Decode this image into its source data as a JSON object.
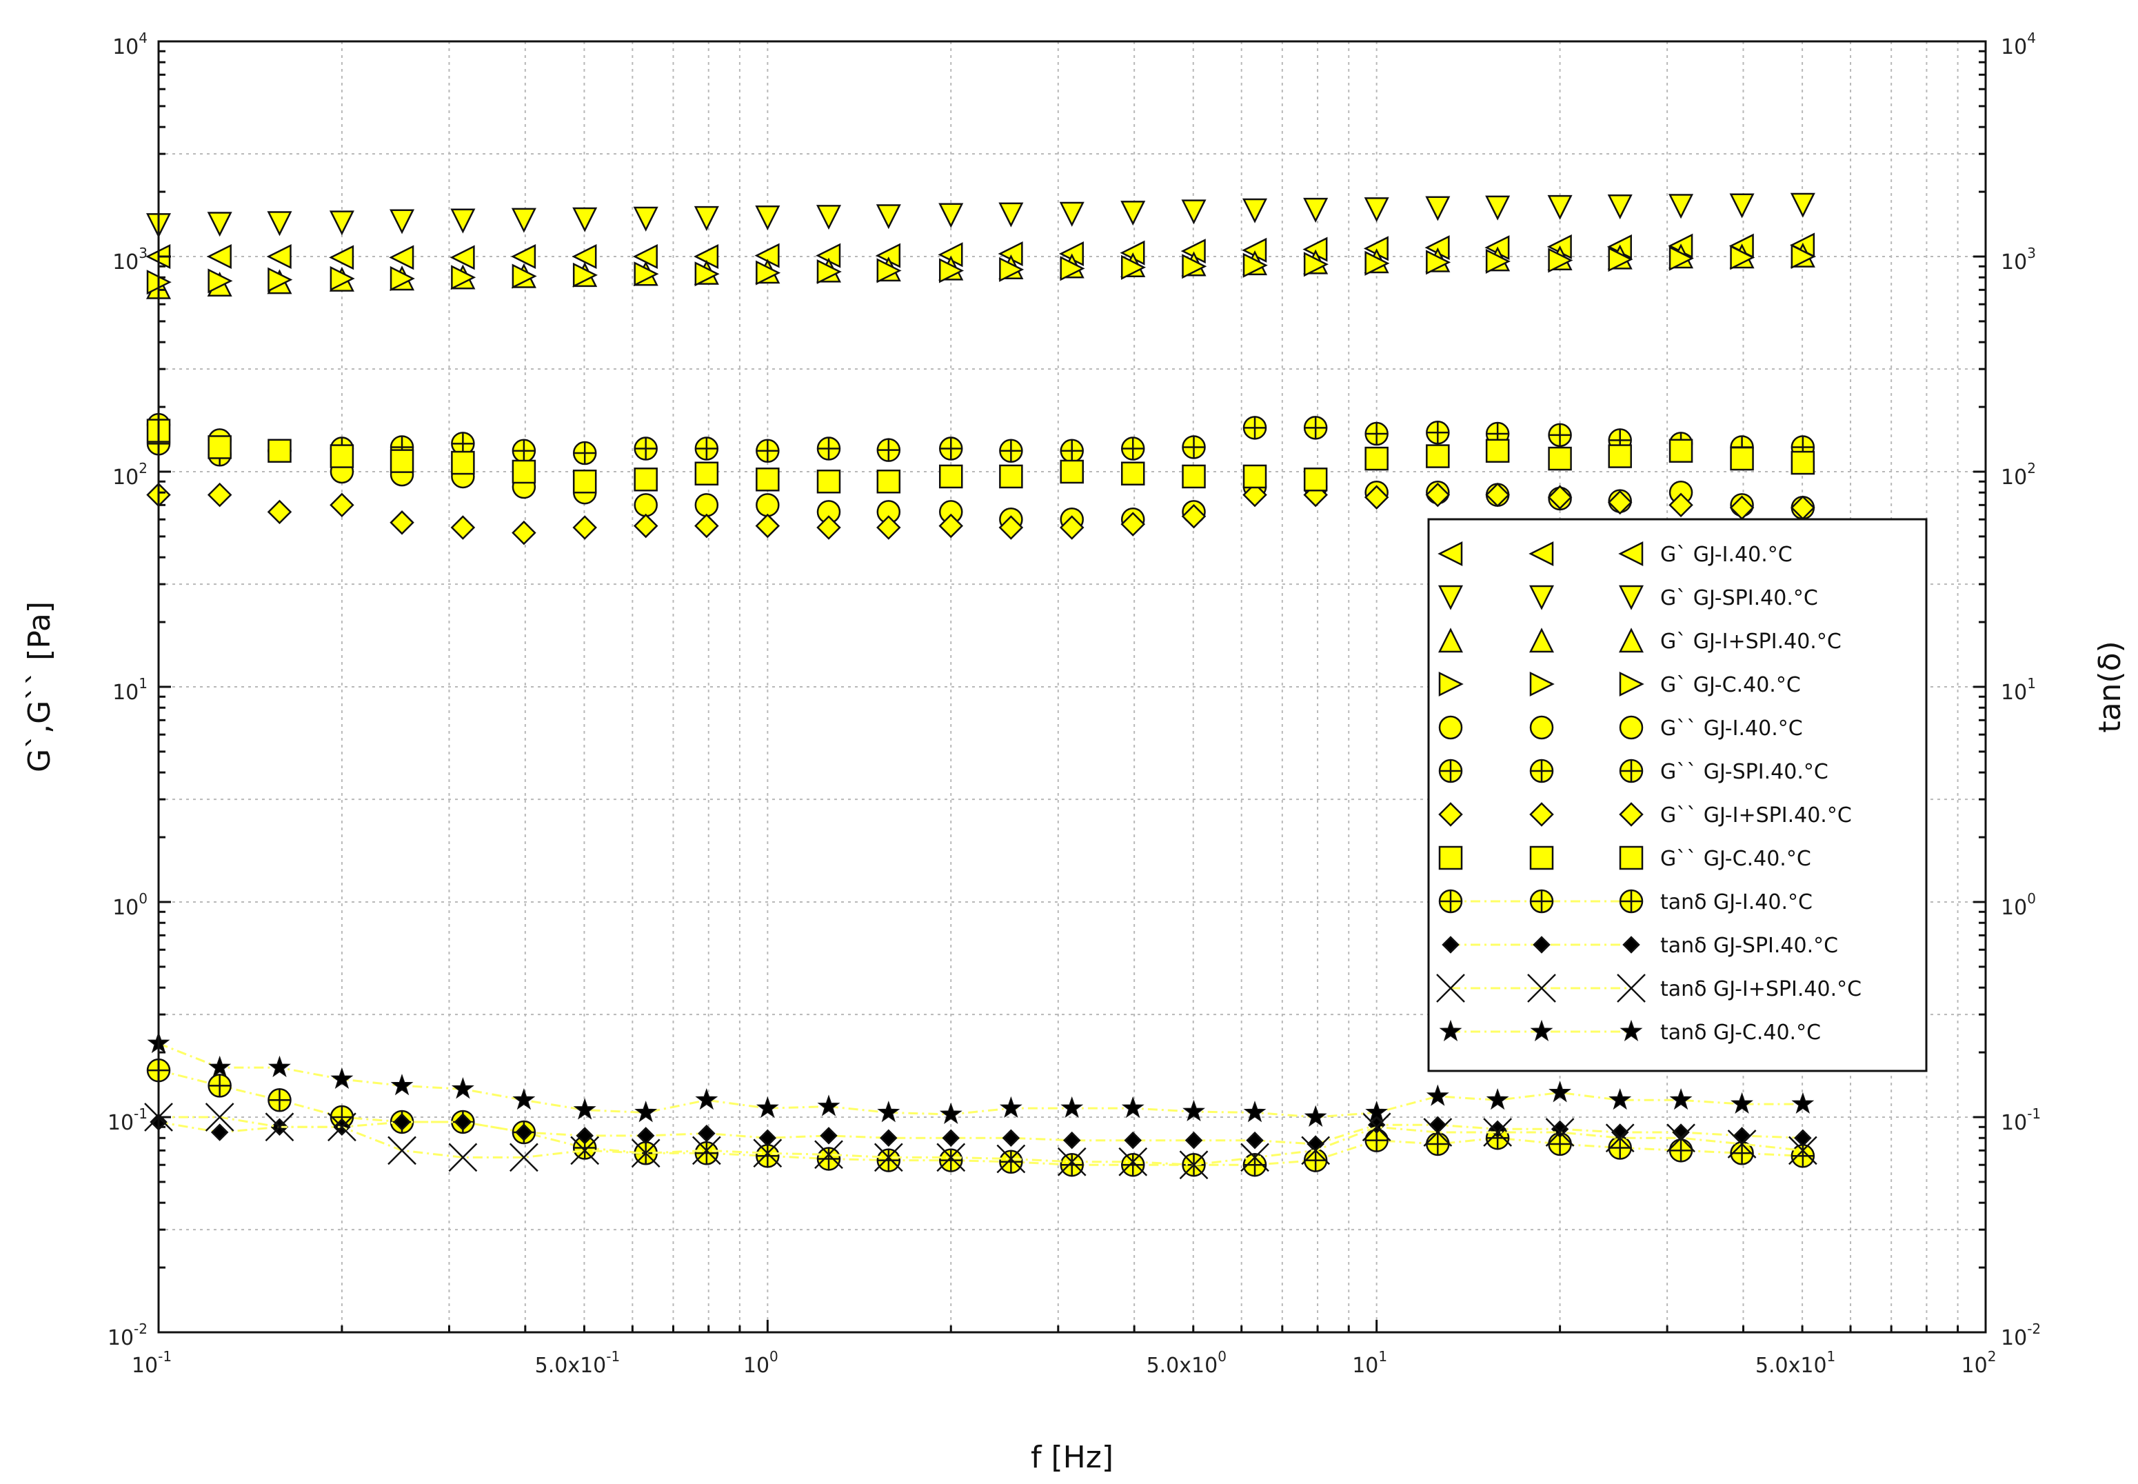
{
  "chart_data": {
    "type": "scatter",
    "xlabel": "f [Hz]",
    "ylabel": "G`,G`` [Pa]",
    "y2label": "tan(δ)",
    "xscale": "log",
    "yscale": "log",
    "xlim": [
      0.1,
      100
    ],
    "ylim": [
      0.01,
      10000
    ],
    "y2lim": [
      0.01,
      10000
    ],
    "grid": true,
    "legend_position": "right-middle",
    "x_ticks": [
      {
        "base": "10",
        "exp": "-1",
        "value": 0.1
      },
      {
        "base": "5.0x10",
        "exp": "-1",
        "value": 0.5
      },
      {
        "base": "10",
        "exp": "0",
        "value": 1
      },
      {
        "base": "5.0x10",
        "exp": "0",
        "value": 5
      },
      {
        "base": "10",
        "exp": "1",
        "value": 10
      },
      {
        "base": "5.0x10",
        "exp": "1",
        "value": 50
      },
      {
        "base": "10",
        "exp": "2",
        "value": 100
      }
    ],
    "y_ticks": [
      {
        "base": "10",
        "exp": "-2",
        "value": 0.01
      },
      {
        "base": "10",
        "exp": "-1",
        "value": 0.1
      },
      {
        "base": "10",
        "exp": "0",
        "value": 1
      },
      {
        "base": "10",
        "exp": "1",
        "value": 10
      },
      {
        "base": "10",
        "exp": "2",
        "value": 100
      },
      {
        "base": "10",
        "exp": "3",
        "value": 1000
      },
      {
        "base": "10",
        "exp": "4",
        "value": 10000
      }
    ],
    "x": [
      0.1,
      0.126,
      0.158,
      0.2,
      0.251,
      0.316,
      0.398,
      0.501,
      0.631,
      0.794,
      1.0,
      1.26,
      1.58,
      2.0,
      2.51,
      3.16,
      3.98,
      5.01,
      6.31,
      7.94,
      10.0,
      12.6,
      15.8,
      20.0,
      25.1,
      31.6,
      39.8,
      50.1
    ],
    "series": [
      {
        "name": "G` GJ-I.40.°C",
        "marker": "tri-left",
        "fill": "#ffff00",
        "values": [
          1000,
          1000,
          1000,
          990,
          990,
          990,
          1000,
          1000,
          1000,
          1000,
          1010,
          1010,
          1010,
          1020,
          1030,
          1030,
          1040,
          1060,
          1070,
          1080,
          1090,
          1100,
          1100,
          1110,
          1110,
          1120,
          1120,
          1130
        ]
      },
      {
        "name": "G` GJ-SPI.40.°C",
        "marker": "tri-down",
        "fill": "#ffff00",
        "values": [
          1400,
          1420,
          1430,
          1440,
          1460,
          1470,
          1480,
          1490,
          1500,
          1510,
          1520,
          1530,
          1540,
          1560,
          1570,
          1580,
          1600,
          1620,
          1640,
          1650,
          1660,
          1680,
          1690,
          1700,
          1710,
          1720,
          1730,
          1740
        ]
      },
      {
        "name": "G` GJ-I+SPI.40.°C",
        "marker": "tri-up",
        "fill": "#ffff00",
        "values": [
          720,
          740,
          760,
          780,
          790,
          800,
          810,
          820,
          830,
          840,
          850,
          860,
          870,
          880,
          890,
          900,
          910,
          920,
          930,
          940,
          950,
          960,
          970,
          980,
          990,
          1000,
          1000,
          1010
        ]
      },
      {
        "name": "G` GJ-C.40.°C",
        "marker": "tri-right",
        "fill": "#ffff00",
        "values": [
          760,
          770,
          780,
          790,
          790,
          800,
          810,
          820,
          830,
          830,
          840,
          850,
          860,
          860,
          870,
          880,
          890,
          900,
          910,
          920,
          930,
          940,
          950,
          960,
          970,
          980,
          990,
          1000
        ]
      },
      {
        "name": "G`` GJ-I.40.°C",
        "marker": "circle",
        "fill": "#ffff00",
        "values": [
          165,
          140,
          125,
          100,
          97,
          95,
          85,
          80,
          70,
          70,
          70,
          65,
          65,
          65,
          60,
          60,
          60,
          65,
          85,
          85,
          80,
          80,
          78,
          75,
          73,
          80,
          70,
          68
        ]
      },
      {
        "name": "G`` GJ-SPI.40.°C",
        "marker": "circle-plus",
        "fill": "#ffff00",
        "values": [
          135,
          120,
          125,
          128,
          130,
          135,
          125,
          122,
          128,
          128,
          125,
          128,
          126,
          128,
          125,
          125,
          128,
          130,
          160,
          160,
          150,
          152,
          150,
          148,
          140,
          135,
          130,
          130
        ]
      },
      {
        "name": "G`` GJ-I+SPI.40.°C",
        "marker": "diamond",
        "fill": "#ffff00",
        "values": [
          78,
          78,
          65,
          70,
          58,
          55,
          52,
          55,
          56,
          56,
          56,
          55,
          55,
          56,
          55,
          55,
          57,
          62,
          78,
          78,
          76,
          78,
          78,
          76,
          72,
          70,
          68,
          68
        ]
      },
      {
        "name": "G`` GJ-C.40.°C",
        "marker": "square",
        "fill": "#ffff00",
        "values": [
          155,
          130,
          125,
          118,
          112,
          110,
          100,
          90,
          92,
          98,
          92,
          90,
          90,
          95,
          95,
          100,
          98,
          95,
          95,
          92,
          115,
          118,
          125,
          115,
          118,
          125,
          115,
          110
        ]
      },
      {
        "name": "tanδ GJ-I.40.°C",
        "marker": "circle-plus",
        "fill": "#ffff00",
        "line": "#ffff66",
        "values": [
          0.165,
          0.14,
          0.12,
          0.1,
          0.095,
          0.095,
          0.085,
          0.072,
          0.068,
          0.068,
          0.066,
          0.064,
          0.063,
          0.063,
          0.062,
          0.06,
          0.06,
          0.06,
          0.06,
          0.063,
          0.078,
          0.075,
          0.08,
          0.075,
          0.072,
          0.07,
          0.068,
          0.066
        ]
      },
      {
        "name": "tanδ GJ-SPI.40.°C",
        "marker": "diamond-filled",
        "fill": "#000000",
        "line": "#ffff66",
        "values": [
          0.095,
          0.085,
          0.09,
          0.09,
          0.095,
          0.095,
          0.085,
          0.082,
          0.082,
          0.084,
          0.08,
          0.082,
          0.08,
          0.08,
          0.08,
          0.078,
          0.078,
          0.078,
          0.078,
          0.075,
          0.092,
          0.092,
          0.088,
          0.088,
          0.085,
          0.085,
          0.082,
          0.08
        ]
      },
      {
        "name": "tanδ GJ-I+SPI.40.°C",
        "marker": "x",
        "fill": "none",
        "line": "#ffff66",
        "values": [
          0.1,
          0.1,
          0.09,
          0.09,
          0.07,
          0.065,
          0.065,
          0.07,
          0.068,
          0.07,
          0.068,
          0.067,
          0.065,
          0.065,
          0.064,
          0.062,
          0.062,
          0.06,
          0.065,
          0.07,
          0.09,
          0.085,
          0.085,
          0.085,
          0.08,
          0.08,
          0.075,
          0.07
        ]
      },
      {
        "name": "tanδ GJ-C.40.°C",
        "marker": "star",
        "fill": "#000000",
        "line": "#ffff66",
        "values": [
          0.22,
          0.17,
          0.17,
          0.15,
          0.14,
          0.135,
          0.12,
          0.108,
          0.105,
          0.12,
          0.11,
          0.112,
          0.105,
          0.103,
          0.11,
          0.11,
          0.11,
          0.106,
          0.105,
          0.1,
          0.105,
          0.125,
          0.12,
          0.13,
          0.12,
          0.12,
          0.115,
          0.115
        ]
      }
    ]
  }
}
